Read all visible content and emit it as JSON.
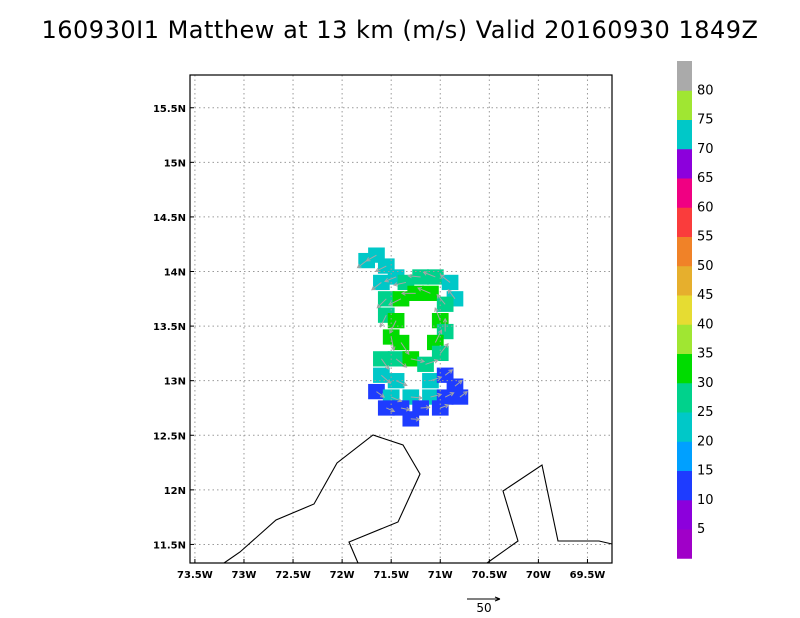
{
  "chart_data": {
    "type": "heatmap",
    "title": "160930I1 Matthew at 13 km (m/s) Valid 20160930 1849Z",
    "x_ticks": [
      "73.5W",
      "73W",
      "72.5W",
      "72W",
      "71.5W",
      "71W",
      "70.5W",
      "70W",
      "69.5W"
    ],
    "x_tick_values": [
      -73.5,
      -73.0,
      -72.5,
      -72.0,
      -71.5,
      -71.0,
      -70.5,
      -70.0,
      -69.5
    ],
    "y_ticks": [
      "11.5N",
      "12N",
      "12.5N",
      "13N",
      "13.5N",
      "14N",
      "14.5N",
      "15N",
      "15.5N"
    ],
    "y_tick_values": [
      11.5,
      12.0,
      12.5,
      13.0,
      13.5,
      14.0,
      14.5,
      15.0,
      15.5
    ],
    "xlim": [
      -73.55,
      -69.25
    ],
    "ylim": [
      11.33,
      15.8
    ],
    "grid": true,
    "colorbar": {
      "labels": [
        "5",
        "10",
        "15",
        "20",
        "25",
        "30",
        "35",
        "40",
        "45",
        "50",
        "55",
        "60",
        "65",
        "70",
        "75",
        "80"
      ],
      "colors": [
        "#a000c8",
        "#8c00dc",
        "#1e3cff",
        "#00a0ff",
        "#00c8c8",
        "#00d28c",
        "#00dc00",
        "#a0e632",
        "#e6dc32",
        "#e6af2d",
        "#f08228",
        "#fa3c3c",
        "#f00082",
        "#8c00dc",
        "#00c8c8",
        "#a0e632",
        "#aaaaaa"
      ]
    },
    "wind_cells": [
      {
        "lon": -71.75,
        "lat": 14.1,
        "speed": 22
      },
      {
        "lon": -71.65,
        "lat": 14.15,
        "speed": 22
      },
      {
        "lon": -71.55,
        "lat": 14.05,
        "speed": 23
      },
      {
        "lon": -71.6,
        "lat": 13.9,
        "speed": 24
      },
      {
        "lon": -71.45,
        "lat": 13.95,
        "speed": 24
      },
      {
        "lon": -71.35,
        "lat": 13.9,
        "speed": 25
      },
      {
        "lon": -71.2,
        "lat": 13.95,
        "speed": 26
      },
      {
        "lon": -71.05,
        "lat": 13.95,
        "speed": 27
      },
      {
        "lon": -70.9,
        "lat": 13.9,
        "speed": 24
      },
      {
        "lon": -70.85,
        "lat": 13.75,
        "speed": 21
      },
      {
        "lon": -71.55,
        "lat": 13.75,
        "speed": 27
      },
      {
        "lon": -71.4,
        "lat": 13.75,
        "speed": 30
      },
      {
        "lon": -71.25,
        "lat": 13.8,
        "speed": 31
      },
      {
        "lon": -71.1,
        "lat": 13.8,
        "speed": 30
      },
      {
        "lon": -70.95,
        "lat": 13.7,
        "speed": 26
      },
      {
        "lon": -71.55,
        "lat": 13.6,
        "speed": 28
      },
      {
        "lon": -71.45,
        "lat": 13.55,
        "speed": 31
      },
      {
        "lon": -71.0,
        "lat": 13.55,
        "speed": 30
      },
      {
        "lon": -70.95,
        "lat": 13.45,
        "speed": 27
      },
      {
        "lon": -71.5,
        "lat": 13.4,
        "speed": 30
      },
      {
        "lon": -71.4,
        "lat": 13.35,
        "speed": 32
      },
      {
        "lon": -71.05,
        "lat": 13.35,
        "speed": 31
      },
      {
        "lon": -71.0,
        "lat": 13.25,
        "speed": 26
      },
      {
        "lon": -71.6,
        "lat": 13.2,
        "speed": 26
      },
      {
        "lon": -71.45,
        "lat": 13.2,
        "speed": 29
      },
      {
        "lon": -71.3,
        "lat": 13.2,
        "speed": 30
      },
      {
        "lon": -71.15,
        "lat": 13.15,
        "speed": 28
      },
      {
        "lon": -71.6,
        "lat": 13.05,
        "speed": 24
      },
      {
        "lon": -71.45,
        "lat": 13.0,
        "speed": 23
      },
      {
        "lon": -71.1,
        "lat": 13.0,
        "speed": 22
      },
      {
        "lon": -70.95,
        "lat": 13.05,
        "speed": 12
      },
      {
        "lon": -70.85,
        "lat": 12.95,
        "speed": 12
      },
      {
        "lon": -71.65,
        "lat": 12.9,
        "speed": 14
      },
      {
        "lon": -71.5,
        "lat": 12.85,
        "speed": 20
      },
      {
        "lon": -71.3,
        "lat": 12.85,
        "speed": 21
      },
      {
        "lon": -71.1,
        "lat": 12.85,
        "speed": 20
      },
      {
        "lon": -70.95,
        "lat": 12.85,
        "speed": 14
      },
      {
        "lon": -70.8,
        "lat": 12.85,
        "speed": 12
      },
      {
        "lon": -71.55,
        "lat": 12.75,
        "speed": 11
      },
      {
        "lon": -71.4,
        "lat": 12.75,
        "speed": 12
      },
      {
        "lon": -71.2,
        "lat": 12.75,
        "speed": 12
      },
      {
        "lon": -71.0,
        "lat": 12.75,
        "speed": 11
      },
      {
        "lon": -71.3,
        "lat": 12.65,
        "speed": 11
      }
    ],
    "reference_vector": {
      "label": "50",
      "value": 50
    }
  }
}
